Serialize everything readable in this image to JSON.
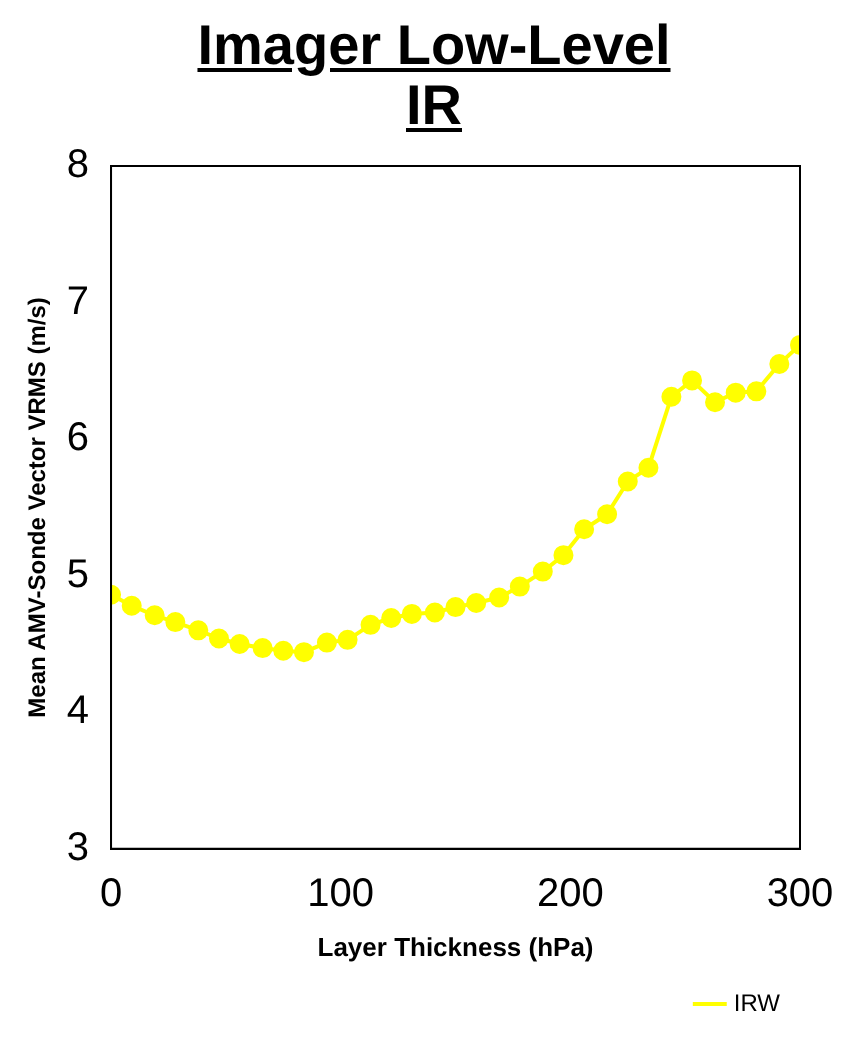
{
  "chart_data": {
    "type": "line",
    "title": "Imager Low-Level IR",
    "xlabel": "Layer Thickness (hPa)",
    "ylabel": "Mean AMV-Sonde Vector VRMS (m/s)",
    "xlim": [
      0,
      300
    ],
    "xticks": [
      0,
      100,
      200,
      300
    ],
    "ylim": [
      3,
      8
    ],
    "yticks": [
      3,
      4,
      5,
      6,
      7,
      8
    ],
    "grid": false,
    "legend": "bottom right",
    "marker": "circle",
    "line_style": "solid",
    "series": [
      {
        "name": "IRW",
        "color": "#ffff00",
        "x": [
          0,
          9,
          19,
          28,
          38,
          47,
          56,
          66,
          75,
          84,
          94,
          103,
          113,
          122,
          131,
          141,
          150,
          159,
          169,
          178,
          188,
          197,
          206,
          216,
          225,
          234,
          244,
          253,
          263,
          272,
          281,
          291,
          300
        ],
        "values": [
          4.86,
          4.78,
          4.71,
          4.66,
          4.6,
          4.54,
          4.5,
          4.47,
          4.45,
          4.44,
          4.51,
          4.53,
          4.64,
          4.69,
          4.72,
          4.73,
          4.77,
          4.8,
          4.84,
          4.92,
          5.03,
          5.15,
          5.34,
          5.45,
          5.69,
          5.79,
          6.31,
          6.43,
          6.27,
          6.34,
          6.35,
          6.55,
          6.69
        ]
      }
    ]
  }
}
